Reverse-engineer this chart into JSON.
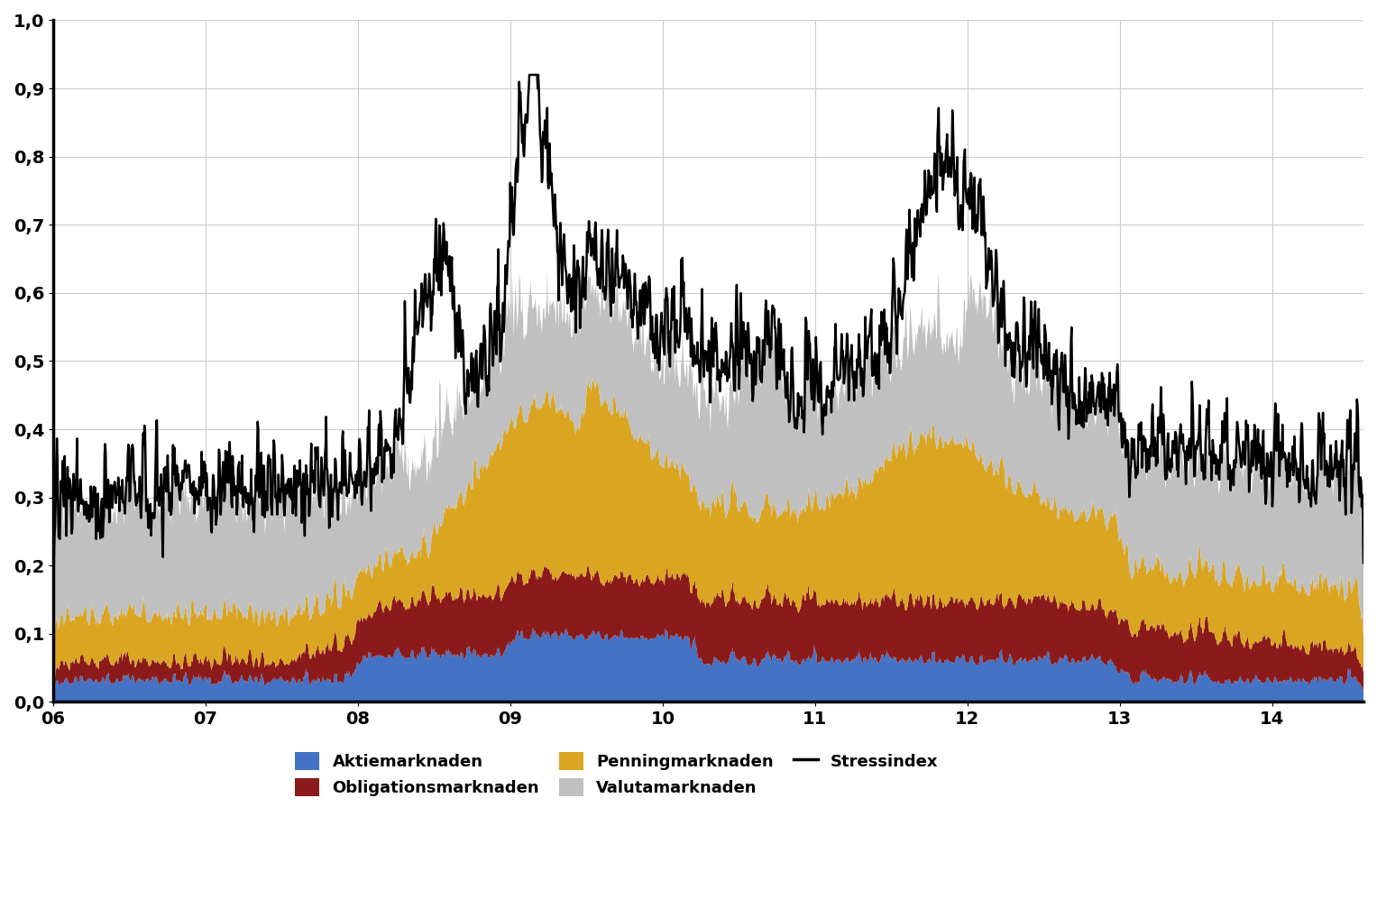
{
  "colors": {
    "aktiemarknaden": "#4472C4",
    "obligationsmarknaden": "#8B1A1A",
    "penningmarknaden": "#DAA520",
    "valutamarknaden": "#C0C0C0",
    "stressindex": "#000000"
  },
  "legend_labels": {
    "aktiemarknaden": "Aktiemarknaden",
    "obligationsmarknaden": "Obligationsmarknaden",
    "penningmarknaden": "Penningmarknaden",
    "valutamarknaden": "Valutamarknaden",
    "stressindex": "Stressindex"
  },
  "yticks": [
    0.0,
    0.1,
    0.2,
    0.3,
    0.4,
    0.5,
    0.6,
    0.7,
    0.8,
    0.9,
    1.0
  ],
  "ytick_labels": [
    "0,0",
    "0,1",
    "0,2",
    "0,3",
    "0,4",
    "0,5",
    "0,6",
    "0,7",
    "0,8",
    "0,9",
    "1,0"
  ],
  "xtick_labels": [
    "06",
    "07",
    "08",
    "09",
    "10",
    "11",
    "12",
    "13",
    "14"
  ],
  "ylim": [
    0.0,
    1.0
  ],
  "xlim": [
    0,
    8.6
  ],
  "background_color": "#FFFFFF",
  "grid_color": "#CCCCCC"
}
